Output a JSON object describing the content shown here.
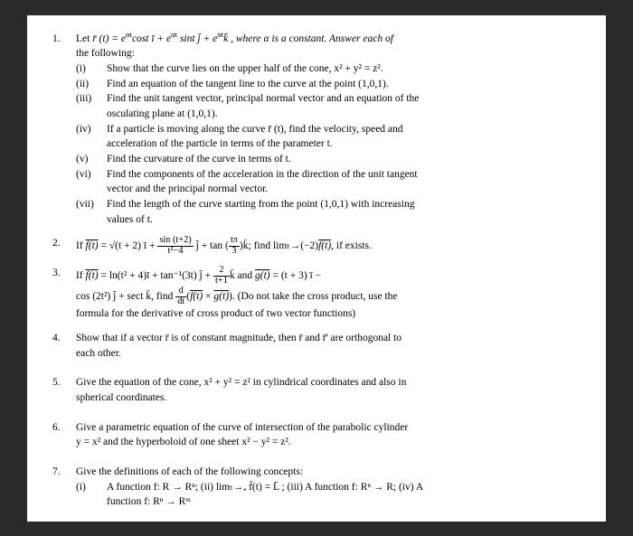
{
  "p1": {
    "num": "1.",
    "intro_a": "Let ",
    "intro_eq": "r̄ (t) = e",
    "intro_b": "cost ī + e",
    "intro_c": " sint j̄ + e",
    "intro_d": "k̄ , where α is a constant. Answer each of",
    "intro_e": "the following:",
    "at": "αt",
    "i": {
      "n": "(i)",
      "t": "Show that the curve lies on the upper half of the cone, x² + y² = z²."
    },
    "ii": {
      "n": "(ii)",
      "t": "Find an equation of the tangent line to the curve at the point (1,0,1)."
    },
    "iii": {
      "n": "(iii)",
      "t1": "Find the unit tangent vector, principal normal vector and an equation of the",
      "t2": "osculating plane at (1,0,1)."
    },
    "iv": {
      "n": "(iv)",
      "t1": "If a particle is moving along the curve r̄ (t), find the velocity, speed and",
      "t2": "acceleration of the particle in terms of the parameter t."
    },
    "v": {
      "n": "(v)",
      "t": "Find the curvature of the curve in terms of t."
    },
    "vi": {
      "n": "(vi)",
      "t1": "Find the components of the acceleration in the direction of the unit tangent",
      "t2": "vector and the principal normal vector."
    },
    "vii": {
      "n": "(vii)",
      "t1": "Find the length of the curve starting from the point (1,0,1) with increasing",
      "t2": "values of t."
    }
  },
  "p2": {
    "num": "2.",
    "a": "If ",
    "ft": "f(t)",
    "b": " = √(t + 2) ī + ",
    "fn": "sin (t+2)",
    "fd": "t²−4",
    "c": " j̄ + tan (",
    "gn": "tπ",
    "gd": "3",
    "d": ")k̄; find limₜ→(−2)",
    "e": ", if exists."
  },
  "p3": {
    "num": "3.",
    "a": "If ",
    "ft": "f(t)",
    "b": " = ln(t² + 4)ī + tan⁻¹(3t) j̄ + ",
    "hn": "2",
    "hd": "t+1",
    "c": "k̄ and ",
    "gt": "g(t)",
    "d": " = (t + 3) ī −",
    "l2a": "cos (2t²) j̄ + sect k̄, find ",
    "dn": "d",
    "dd": "dt",
    "l2b": "(",
    "l2c": " × ",
    "l2d": "). (Do not take the cross product, use the",
    "l3": "formula for the derivative of cross product of two vector functions)"
  },
  "p4": {
    "num": "4.",
    "t1": "Show that if a vector r̄ is of constant magnitude, then r̄ and r̄' are orthogonal to",
    "t2": "each other."
  },
  "p5": {
    "num": "5.",
    "t1": "Give the equation of the cone, x² + y² = z² in cylindrical coordinates and also in",
    "t2": "spherical coordinates."
  },
  "p6": {
    "num": "6.",
    "t1": "Give a parametric equation of the curve of intersection of the parabolic cylinder",
    "t2": "y = x² and the hyperboloid of one sheet x² − y² = z²."
  },
  "p7": {
    "num": "7.",
    "t1": "Give the definitions of each of the following concepts:",
    "i": {
      "n": "(i)",
      "t1": "A function f: R → Rⁿ; (ii) limₜ→ₐ f̄(t) = L̄ ; (iii) A function f: Rⁿ → R; (iv) A",
      "t2": "function f: Rⁿ → Rᵐ"
    }
  }
}
